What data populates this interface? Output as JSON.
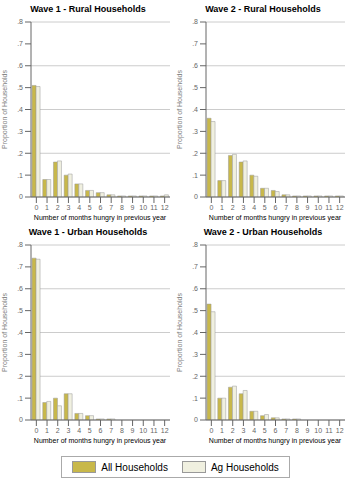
{
  "chart_data": [
    {
      "type": "bar",
      "title": "Wave 1 - Rural Households",
      "x_label": "Number of months hungry in previous year",
      "y_label": "Proportion of Households",
      "categories": [
        "0",
        "1",
        "2",
        "3",
        "4",
        "5",
        "6",
        "7",
        "8",
        "9",
        "10",
        "11",
        "12"
      ],
      "series": [
        {
          "name": "All Households",
          "color": "#c8b84a",
          "values": [
            0.51,
            0.08,
            0.16,
            0.1,
            0.06,
            0.03,
            0.02,
            0.01,
            0.005,
            0.005,
            0.005,
            0.005,
            0.005
          ]
        },
        {
          "name": "Ag Households",
          "color": "#f0f0e0",
          "values": [
            0.505,
            0.08,
            0.165,
            0.105,
            0.06,
            0.03,
            0.02,
            0.01,
            0.005,
            0.005,
            0.005,
            0.005,
            0.01
          ]
        }
      ],
      "ylim": [
        0,
        0.8
      ],
      "yticks": [
        0,
        {
          "value": 0.1,
          "label": ".1"
        },
        {
          "value": 0.2,
          "label": ".2"
        },
        {
          "value": 0.3,
          "label": ".3"
        },
        {
          "value": 0.4,
          "label": ".4"
        },
        {
          "value": 0.5,
          "label": ".5"
        },
        {
          "value": 0.6,
          "label": ".6"
        },
        {
          "value": 0.7,
          "label": ".7"
        },
        {
          "value": 0.8,
          "label": ".8"
        }
      ],
      "grid": true,
      "legend": "bottom"
    },
    {
      "type": "bar",
      "title": "Wave 2 - Rural Households",
      "x_label": "Number of months hungry in previous year",
      "y_label": "Proportion of Households",
      "categories": [
        "0",
        "1",
        "2",
        "3",
        "4",
        "5",
        "6",
        "7",
        "8",
        "9",
        "10",
        "11",
        "12"
      ],
      "series": [
        {
          "name": "All Households",
          "color": "#c8b84a",
          "values": [
            0.36,
            0.075,
            0.19,
            0.16,
            0.1,
            0.04,
            0.03,
            0.01,
            0.005,
            0.005,
            0.005,
            0.005,
            0.005
          ]
        },
        {
          "name": "Ag Households",
          "color": "#f0f0e0",
          "values": [
            0.345,
            0.075,
            0.195,
            0.165,
            0.095,
            0.04,
            0.025,
            0.01,
            0.005,
            0.005,
            0.005,
            0.005,
            0.005
          ]
        }
      ],
      "ylim": [
        0,
        0.8
      ],
      "yticks": [
        0,
        {
          "value": 0.1,
          "label": ".1"
        },
        {
          "value": 0.2,
          "label": ".2"
        },
        {
          "value": 0.3,
          "label": ".3"
        },
        {
          "value": 0.4,
          "label": ".4"
        },
        {
          "value": 0.5,
          "label": ".5"
        },
        {
          "value": 0.6,
          "label": ".6"
        },
        {
          "value": 0.7,
          "label": ".7"
        },
        {
          "value": 0.8,
          "label": ".8"
        }
      ],
      "grid": true,
      "legend": "bottom"
    },
    {
      "type": "bar",
      "title": "Wave 1 - Urban Households",
      "x_label": "Number of months hungry in previous year",
      "y_label": "Proportion of Households",
      "categories": [
        "0",
        "1",
        "2",
        "3",
        "4",
        "5",
        "6",
        "7",
        "8",
        "9",
        "10",
        "11",
        "12"
      ],
      "series": [
        {
          "name": "All Households",
          "color": "#c8b84a",
          "values": [
            0.74,
            0.08,
            0.1,
            0.12,
            0.03,
            0.02,
            0.005,
            0.005,
            0.0,
            0.0,
            0.0,
            0.0,
            0.0
          ]
        },
        {
          "name": "Ag Households",
          "color": "#f0f0e0",
          "values": [
            0.735,
            0.085,
            0.065,
            0.12,
            0.03,
            0.02,
            0.005,
            0.005,
            0.0,
            0.0,
            0.0,
            0.0,
            0.0
          ]
        }
      ],
      "ylim": [
        0,
        0.8
      ],
      "yticks": [
        0,
        {
          "value": 0.1,
          "label": ".1"
        },
        {
          "value": 0.2,
          "label": ".2"
        },
        {
          "value": 0.3,
          "label": ".3"
        },
        {
          "value": 0.4,
          "label": ".4"
        },
        {
          "value": 0.5,
          "label": ".5"
        },
        {
          "value": 0.6,
          "label": ".6"
        },
        {
          "value": 0.7,
          "label": ".7"
        },
        {
          "value": 0.8,
          "label": ".8"
        }
      ],
      "grid": true,
      "legend": "bottom"
    },
    {
      "type": "bar",
      "title": "Wave 2 - Urban Households",
      "x_label": "Number of months hungry in previous year",
      "y_label": "Proportion of Households",
      "categories": [
        "0",
        "1",
        "2",
        "3",
        "4",
        "5",
        "6",
        "7",
        "8",
        "9",
        "10",
        "11",
        "12"
      ],
      "series": [
        {
          "name": "All Households",
          "color": "#c8b84a",
          "values": [
            0.53,
            0.1,
            0.15,
            0.12,
            0.04,
            0.02,
            0.01,
            0.005,
            0.005,
            0.0,
            0.0,
            0.0,
            0.0
          ]
        },
        {
          "name": "Ag Households",
          "color": "#f0f0e0",
          "values": [
            0.495,
            0.1,
            0.155,
            0.135,
            0.04,
            0.025,
            0.01,
            0.005,
            0.005,
            0.0,
            0.0,
            0.0,
            0.0
          ]
        }
      ],
      "ylim": [
        0,
        0.8
      ],
      "yticks": [
        0,
        {
          "value": 0.1,
          "label": ".1"
        },
        {
          "value": 0.2,
          "label": ".2"
        },
        {
          "value": 0.3,
          "label": ".3"
        },
        {
          "value": 0.4,
          "label": ".4"
        },
        {
          "value": 0.5,
          "label": ".5"
        },
        {
          "value": 0.6,
          "label": ".6"
        },
        {
          "value": 0.7,
          "label": ".7"
        },
        {
          "value": 0.8,
          "label": ".8"
        }
      ],
      "grid": true,
      "legend": "bottom"
    }
  ]
}
